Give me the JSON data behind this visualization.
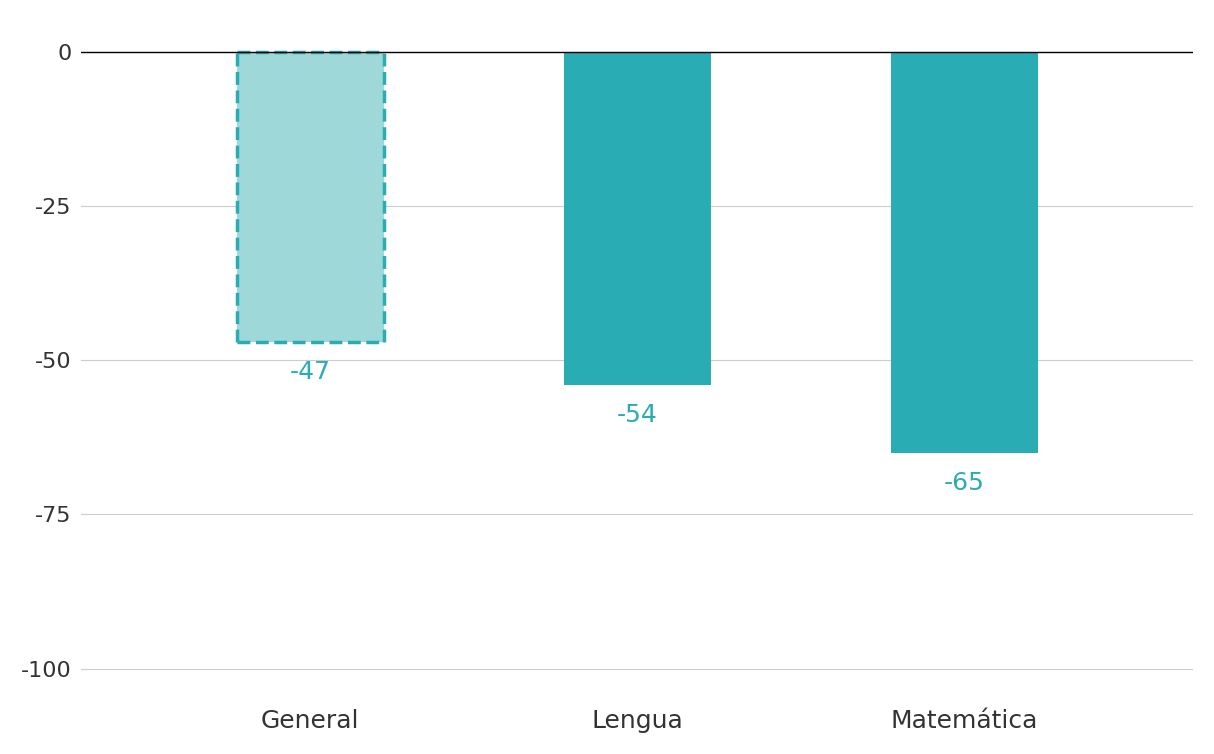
{
  "categories": [
    "General",
    "Lengua",
    "Matemática"
  ],
  "values": [
    -47,
    -54,
    -65
  ],
  "bar_colors": [
    "#9ed8d8",
    "#2aacb5",
    "#2aacb5"
  ],
  "bar_edge_colors": [
    "#2aacb5",
    "#2aacb5",
    "#2aacb5"
  ],
  "dashed": [
    true,
    false,
    false
  ],
  "label_color": "#2aacb5",
  "label_values": [
    "-47",
    "-54",
    "-65"
  ],
  "label_offsets": [
    3,
    3,
    3
  ],
  "ylim": [
    -105,
    5
  ],
  "yticks": [
    0,
    -25,
    -50,
    -75,
    -100
  ],
  "grid_color": "#cccccc",
  "background_color": "#ffffff",
  "bar_width": 0.45,
  "label_fontsize": 18,
  "tick_fontsize": 16,
  "category_fontsize": 18,
  "figsize": [
    12.14,
    7.54
  ]
}
